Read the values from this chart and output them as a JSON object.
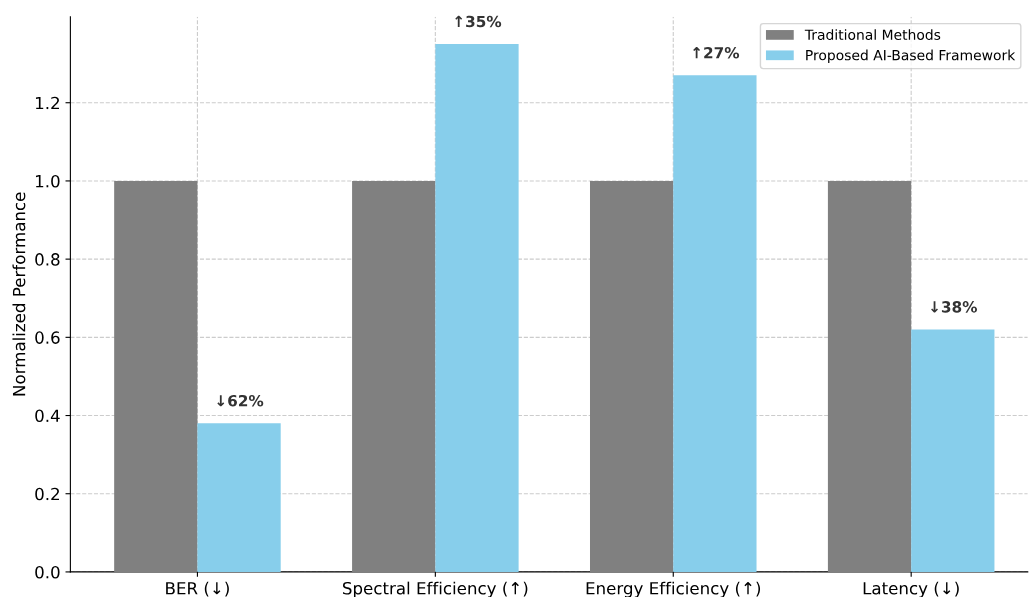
{
  "chart_data": {
    "type": "bar",
    "categories": [
      "BER (↓)",
      "Spectral Efficiency (↑)",
      "Energy Efficiency (↑)",
      "Latency (↓)"
    ],
    "series": [
      {
        "name": "Traditional Methods",
        "color": "#808080",
        "values": [
          1.0,
          1.0,
          1.0,
          1.0
        ]
      },
      {
        "name": "Proposed AI-Based Framework",
        "color": "#87ceeb",
        "values": [
          0.38,
          1.35,
          1.27,
          0.62
        ]
      }
    ],
    "ylabel": "Normalized Performance",
    "ylim": [
      0,
      1.42
    ],
    "yticks": [
      {
        "value": 0,
        "label": "0.0"
      },
      0.2,
      0.4,
      0.6,
      0.8,
      {
        "value": 1,
        "label": "1.0"
      },
      1.2
    ],
    "annotations": [
      {
        "text": "↓62%",
        "x": "BER (↓)",
        "y": 0.38
      },
      {
        "text": "↑35%",
        "x": "Spectral Efficiency (↑)",
        "y": 1.35
      },
      {
        "text": "↑27%",
        "x": "Energy Efficiency (↑)",
        "y": 1.27
      },
      {
        "text": "↓38%",
        "x": "Latency (↓)",
        "y": 0.62
      }
    ],
    "grid": true,
    "legend": "top right"
  }
}
